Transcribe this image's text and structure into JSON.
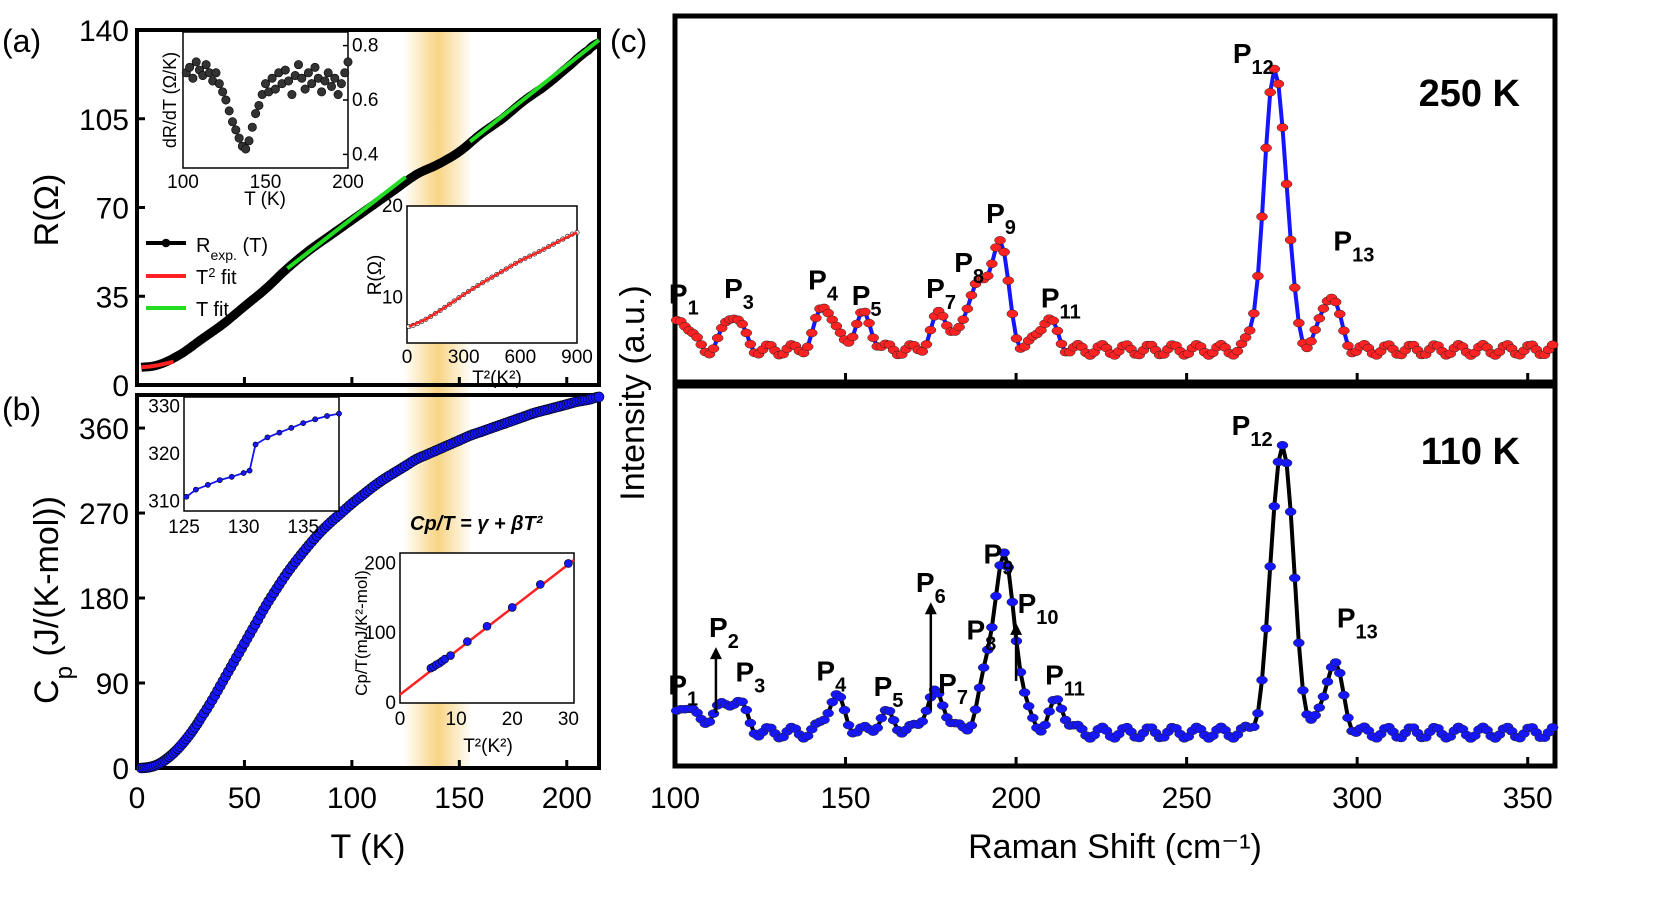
{
  "panels": {
    "a": "(a)",
    "b": "(b)",
    "c": "(c)"
  },
  "colors": {
    "red": "#ff2222",
    "green": "#22dd22",
    "blue": "#1515ff",
    "black": "#000000",
    "band": "#f6c65a",
    "grey": "#555555"
  },
  "chart_data": [
    {
      "id": "a-main",
      "type": "line",
      "xlabel": "",
      "ylabel": "R(Ω)",
      "xlim": [
        0,
        215
      ],
      "ylim": [
        0,
        140
      ],
      "yticks": [
        "0",
        "35",
        "70",
        "105",
        "140"
      ],
      "yticks_v": [
        0,
        35,
        70,
        105,
        140
      ],
      "highlight_band": [
        125,
        155
      ],
      "series": [
        {
          "name": "R_exp.(T)",
          "color": "#000000",
          "x": [
            2,
            10,
            20,
            30,
            40,
            50,
            60,
            70,
            80,
            90,
            100,
            110,
            120,
            130,
            140,
            150,
            160,
            170,
            180,
            190,
            200,
            210,
            215
          ],
          "y": [
            7,
            8,
            12,
            18,
            24,
            31,
            38,
            46,
            53,
            59,
            65,
            71,
            77,
            83,
            87,
            92,
            99,
            105,
            112,
            118,
            125,
            132,
            135
          ]
        },
        {
          "name": "T² fit",
          "color": "#ff2222",
          "x": [
            2,
            6,
            10,
            14,
            17
          ],
          "y": [
            7,
            7.3,
            7.8,
            8.6,
            9.2
          ]
        },
        {
          "name": "T fit (1)",
          "color": "#22dd22",
          "x": [
            70,
            125
          ],
          "y": [
            46,
            82
          ]
        },
        {
          "name": "T fit (2)",
          "color": "#22dd22",
          "x": [
            155,
            215
          ],
          "y": [
            96,
            136
          ]
        }
      ],
      "legend": [
        {
          "label": "R",
          "sub": "exp.",
          "rest": " (T)"
        },
        {
          "label": "T",
          "sup": "2",
          "rest": " fit"
        },
        {
          "label": "T fit"
        }
      ]
    },
    {
      "id": "a-inset-top",
      "type": "scatter",
      "xlabel": "T (K)",
      "ylabel": "dR/dT (Ω/K)",
      "xlim": [
        100,
        200
      ],
      "ylim": [
        0.35,
        0.85
      ],
      "xticks": [
        "100",
        "150",
        "200"
      ],
      "xticks_v": [
        100,
        150,
        200
      ],
      "yticks": [
        "0.4",
        "0.6",
        "0.8"
      ],
      "yticks_v": [
        0.4,
        0.6,
        0.8
      ],
      "x": [
        102,
        104,
        106,
        108,
        110,
        112,
        114,
        116,
        118,
        120,
        122,
        124,
        126,
        128,
        130,
        132,
        134,
        136,
        138,
        140,
        142,
        144,
        146,
        148,
        150,
        152,
        154,
        156,
        158,
        160,
        162,
        164,
        166,
        168,
        170,
        172,
        174,
        176,
        178,
        180,
        182,
        184,
        186,
        188,
        190,
        192,
        194,
        196,
        198,
        200
      ],
      "y": [
        0.7,
        0.72,
        0.68,
        0.74,
        0.71,
        0.69,
        0.73,
        0.7,
        0.67,
        0.7,
        0.66,
        0.63,
        0.6,
        0.56,
        0.52,
        0.49,
        0.46,
        0.43,
        0.42,
        0.45,
        0.5,
        0.55,
        0.58,
        0.62,
        0.66,
        0.63,
        0.68,
        0.64,
        0.7,
        0.66,
        0.71,
        0.67,
        0.62,
        0.69,
        0.73,
        0.68,
        0.64,
        0.7,
        0.66,
        0.72,
        0.68,
        0.63,
        0.67,
        0.7,
        0.65,
        0.68,
        0.62,
        0.66,
        0.7,
        0.74
      ]
    },
    {
      "id": "a-inset-bottom",
      "type": "line",
      "xlabel": "T²(K²)",
      "ylabel": "R(Ω)",
      "xlim": [
        0,
        900
      ],
      "ylim": [
        5,
        20
      ],
      "xticks": [
        "0",
        "300",
        "600",
        "900"
      ],
      "xticks_v": [
        0,
        300,
        600,
        900
      ],
      "yticks": [
        "10",
        "20"
      ],
      "yticks_v": [
        10,
        20
      ],
      "x": [
        10,
        100,
        200,
        300,
        400,
        500,
        600,
        700,
        800,
        900
      ],
      "y": [
        6.8,
        7.6,
        8.9,
        10.3,
        11.6,
        12.8,
        14.0,
        15.0,
        16.1,
        17.1
      ]
    },
    {
      "id": "b-main",
      "type": "scatter",
      "xlabel": "T (K)",
      "ylabel": "Cp (J/(K-mol))",
      "xlim": [
        0,
        215
      ],
      "ylim": [
        0,
        395
      ],
      "xticks": [
        "0",
        "50",
        "100",
        "150",
        "200"
      ],
      "xticks_v": [
        0,
        50,
        100,
        150,
        200
      ],
      "yticks": [
        "0",
        "90",
        "180",
        "270",
        "360"
      ],
      "yticks_v": [
        0,
        90,
        180,
        270,
        360
      ],
      "x": [
        2,
        6,
        10,
        14,
        18,
        22,
        26,
        30,
        35,
        40,
        45,
        50,
        55,
        60,
        65,
        70,
        75,
        80,
        85,
        90,
        95,
        100,
        105,
        110,
        115,
        120,
        125,
        130,
        135,
        140,
        145,
        150,
        155,
        160,
        165,
        170,
        175,
        180,
        185,
        190,
        195,
        200,
        205,
        210,
        215
      ],
      "y": [
        0,
        1,
        4,
        10,
        18,
        28,
        40,
        54,
        72,
        92,
        112,
        132,
        152,
        172,
        190,
        207,
        222,
        236,
        249,
        260,
        270,
        280,
        289,
        298,
        306,
        313,
        320,
        327,
        332,
        337,
        342,
        347,
        352,
        356,
        360,
        364,
        368,
        372,
        376,
        379,
        382,
        385,
        388,
        390,
        393
      ]
    },
    {
      "id": "b-inset-top",
      "type": "line",
      "xlim": [
        125,
        138
      ],
      "ylim": [
        308,
        332
      ],
      "xticks": [
        "125",
        "130",
        "135"
      ],
      "xticks_v": [
        125,
        130,
        135
      ],
      "yticks": [
        "310",
        "320",
        "330"
      ],
      "yticks_v": [
        310,
        320,
        330
      ],
      "x": [
        125.2,
        126,
        127,
        128,
        129,
        130,
        130.5,
        131,
        132,
        133,
        134,
        135,
        136,
        137,
        138
      ],
      "y": [
        311,
        312.5,
        313.5,
        314.5,
        315.2,
        316,
        316.5,
        322,
        323.5,
        324.5,
        325.5,
        326.5,
        327.3,
        328,
        328.5
      ]
    },
    {
      "id": "b-inset-bottom",
      "type": "scatter",
      "xlabel": "T²(K²)",
      "ylabel": "Cp/T(mJ/K²-mol)",
      "equation": "Cp/T = γ + βT²",
      "xlim": [
        0,
        31
      ],
      "ylim": [
        0,
        215
      ],
      "xticks": [
        "0",
        "10",
        "20",
        "30"
      ],
      "xticks_v": [
        0,
        10,
        20,
        30
      ],
      "yticks": [
        "0",
        "100",
        "200"
      ],
      "yticks_v": [
        0,
        100,
        200
      ],
      "x": [
        5.5,
        6.0,
        6.5,
        7.0,
        7.5,
        8.0,
        9.0,
        12.0,
        15.5,
        20.0,
        25.0,
        30.0
      ],
      "y": [
        50,
        52,
        55,
        57,
        60,
        63,
        68,
        88,
        110,
        137,
        170,
        200
      ],
      "fit": {
        "x": [
          0,
          31
        ],
        "y": [
          12,
          205
        ]
      }
    },
    {
      "id": "c-250K",
      "type": "line",
      "label": "250 K",
      "xlim": [
        100,
        358
      ],
      "color_points": "#ff2222",
      "color_line": "#1515ff",
      "peaks": [
        {
          "name": "P",
          "sub": "1",
          "x": 102,
          "y": 0.11
        },
        {
          "name": "P",
          "sub": "3",
          "x": 117,
          "y": 0.13
        },
        {
          "name": "P",
          "sub": "4",
          "x": 144,
          "y": 0.16
        },
        {
          "name": "P",
          "sub": "5",
          "x": 155,
          "y": 0.12
        },
        {
          "name": "P",
          "sub": "7",
          "x": 178,
          "y": 0.13
        },
        {
          "name": "P",
          "sub": "8",
          "x": 188,
          "y": 0.23
        },
        {
          "name": "P",
          "sub": "9",
          "x": 195,
          "y": 0.39
        },
        {
          "name": "P",
          "sub": "11",
          "x": 209,
          "y": 0.11
        },
        {
          "name": "P",
          "sub": "12",
          "x": 276,
          "y": 1.0
        },
        {
          "name": "P",
          "sub": "13",
          "x": 292,
          "y": 0.2
        }
      ]
    },
    {
      "id": "c-110K",
      "type": "line",
      "label": "110 K",
      "xlim": [
        100,
        358
      ],
      "xlabel": "Raman Shift (cm⁻¹)",
      "ylabel": "Intensity (a.u.)",
      "xticks": [
        "100",
        "150",
        "200",
        "250",
        "300",
        "350"
      ],
      "xticks_v": [
        100,
        150,
        200,
        250,
        300,
        350
      ],
      "color_points": "#1515ff",
      "color_line": "#000000",
      "peaks": [
        {
          "name": "P",
          "sub": "1",
          "x": 103,
          "y": 0.1
        },
        {
          "name": "P",
          "sub": "2",
          "x": 112,
          "y": 0.07,
          "arrow": true
        },
        {
          "name": "P",
          "sub": "3",
          "x": 118,
          "y": 0.11
        },
        {
          "name": "P",
          "sub": "4",
          "x": 147,
          "y": 0.12
        },
        {
          "name": "P",
          "sub": "5",
          "x": 162,
          "y": 0.06
        },
        {
          "name": "P",
          "sub": "6",
          "x": 175,
          "y": 0.08,
          "arrow": true
        },
        {
          "name": "P",
          "sub": "7",
          "x": 178,
          "y": 0.07
        },
        {
          "name": "P",
          "sub": "8",
          "x": 191,
          "y": 0.15
        },
        {
          "name": "P",
          "sub": "9",
          "x": 196,
          "y": 0.52
        },
        {
          "name": "P",
          "sub": "10",
          "x": 200,
          "y": 0.18,
          "arrow": true
        },
        {
          "name": "P",
          "sub": "11",
          "x": 212,
          "y": 0.1
        },
        {
          "name": "P",
          "sub": "12",
          "x": 278,
          "y": 1.0
        },
        {
          "name": "P",
          "sub": "13",
          "x": 293,
          "y": 0.24
        }
      ]
    }
  ]
}
